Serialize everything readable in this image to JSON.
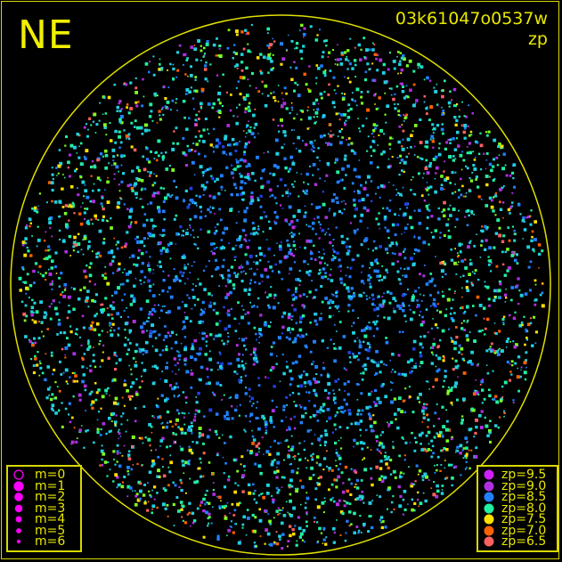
{
  "header": {
    "direction": "NE",
    "frame_id": "03k61047o0537w",
    "metric": "zp"
  },
  "magnitude_legend": {
    "color": "#ff00ff",
    "items": [
      {
        "label": "m=0",
        "hollow": true
      },
      {
        "label": "m=1"
      },
      {
        "label": "m=2"
      },
      {
        "label": "m=3"
      },
      {
        "label": "m=4"
      },
      {
        "label": "m=5"
      },
      {
        "label": "m=6"
      }
    ]
  },
  "zp_legend": {
    "items": [
      {
        "label": "zp=9.5",
        "color": "#d020ff"
      },
      {
        "label": "zp=9.0",
        "color": "#b030e0"
      },
      {
        "label": "zp=8.5",
        "color": "#2080ff"
      },
      {
        "label": "zp=8.0",
        "color": "#20f0a0"
      },
      {
        "label": "zp=7.5",
        "color": "#ffe000"
      },
      {
        "label": "zp=7.0",
        "color": "#ff6000"
      },
      {
        "label": "zp=6.5",
        "color": "#ff6060"
      }
    ]
  },
  "horizon_color": "#e0e000"
}
